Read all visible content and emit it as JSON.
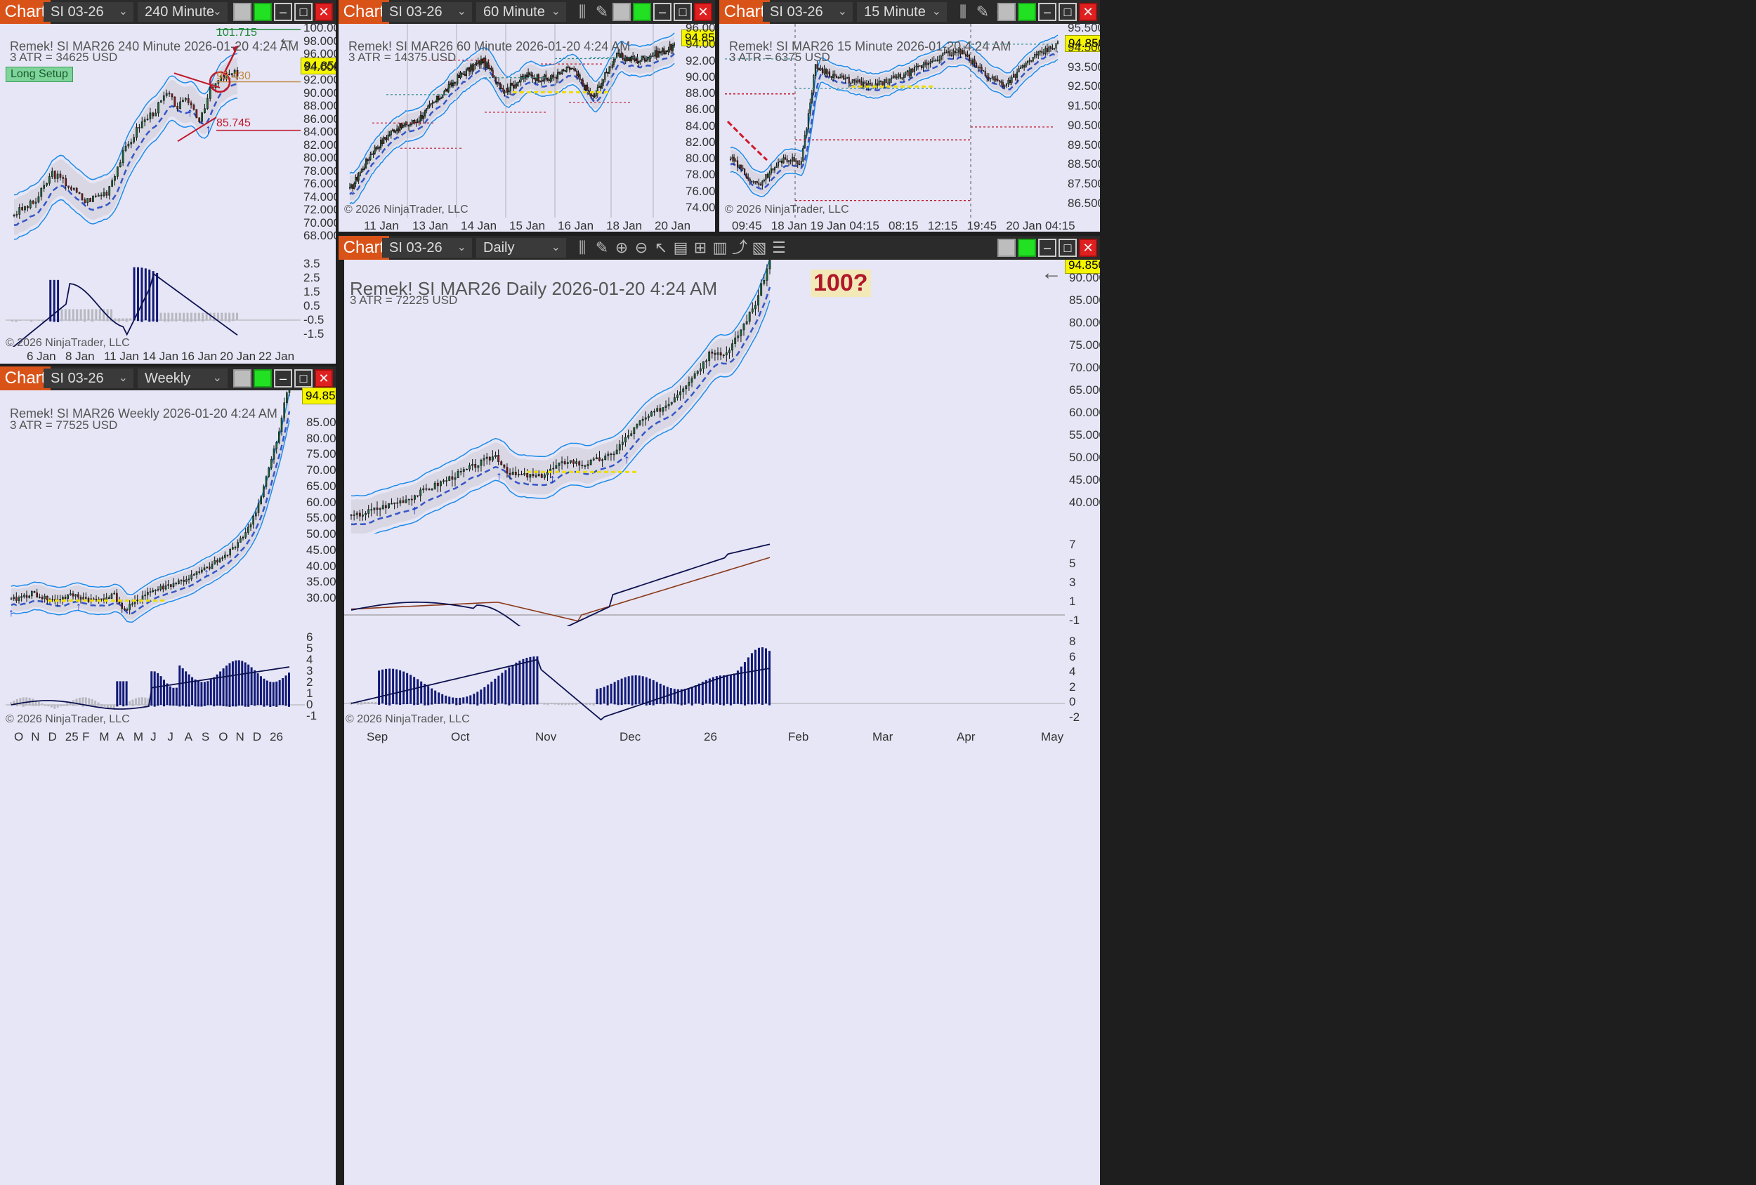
{
  "common": {
    "chart_label": "Chart",
    "symbol": "SI 03-26",
    "last_price": "94.850",
    "copyright": "© 2026 NinjaTrader, LLC",
    "back_arrow": "←"
  },
  "panel240": {
    "interval": "240 Minute",
    "title": "Remek!  SI MAR26  240 Minute  2026-01-20 4:24 AM",
    "atr": "3 ATR = 34625 USD",
    "setup_label": "Long Setup",
    "target_label": "101.715",
    "entry_label": "93.430",
    "stop_label": "85.745",
    "y_labels": [
      "100.000",
      "98.000",
      "96.000",
      "94.000",
      "92.000",
      "90.000",
      "88.000",
      "86.000",
      "84.000",
      "82.000",
      "80.000",
      "78.000",
      "76.000",
      "74.000",
      "72.000",
      "70.000",
      "68.000"
    ],
    "osc_labels": [
      "3.5",
      "2.5",
      "1.5",
      "0.5",
      "-0.5",
      "-1.5"
    ],
    "x_labels": [
      "6 Jan",
      "8 Jan",
      "11 Jan",
      "14 Jan",
      "16 Jan",
      "20 Jan",
      "22 Jan"
    ]
  },
  "panel60": {
    "interval": "60 Minute",
    "title": "Remek!  SI MAR26  60 Minute  2026-01-20 4:24 AM",
    "atr": "3 ATR = 14375 USD",
    "y_labels": [
      "96.000",
      "94.000",
      "92.000",
      "90.000",
      "88.000",
      "86.000",
      "84.000",
      "82.000",
      "80.000",
      "78.000",
      "76.000",
      "74.000"
    ],
    "x_labels": [
      "11 Jan",
      "13 Jan",
      "14 Jan",
      "15 Jan",
      "16 Jan",
      "18 Jan",
      "20 Jan"
    ]
  },
  "panel15": {
    "interval": "15 Minute",
    "title": "Remek!  SI MAR26  15 Minute  2026-01-20 4:24 AM",
    "atr": "3 ATR = 6375 USD",
    "y_labels": [
      "95.500",
      "94.500",
      "93.500",
      "92.500",
      "91.500",
      "90.500",
      "89.500",
      "88.500",
      "87.500",
      "86.500"
    ],
    "x_labels": [
      "09:45",
      "18 Jan",
      "19 Jan",
      "04:15",
      "08:15",
      "12:15",
      "19:45",
      "20 Jan",
      "04:15"
    ]
  },
  "panelWeekly": {
    "interval": "Weekly",
    "title": "Remek!  SI MAR26  Weekly  2026-01-20 4:24 AM",
    "atr": "3 ATR = 77525 USD",
    "y_labels": [
      "85.000",
      "80.000",
      "75.000",
      "70.000",
      "65.000",
      "60.000",
      "55.000",
      "50.000",
      "45.000",
      "40.000",
      "35.000",
      "30.000"
    ],
    "osc_labels": [
      "6",
      "5",
      "4",
      "3",
      "2",
      "1",
      "0",
      "-1"
    ],
    "x_labels": [
      "O",
      "N",
      "D",
      "25",
      "F",
      "M",
      "A",
      "M",
      "J",
      "J",
      "A",
      "S",
      "O",
      "N",
      "D",
      "26"
    ]
  },
  "panelDaily": {
    "interval": "Daily",
    "title": "Remek!  SI MAR26  Daily  2026-01-20 4:24 AM",
    "atr": "3 ATR = 72225 USD",
    "note": "100?",
    "y_labels": [
      "90.000",
      "85.000",
      "80.000",
      "75.000",
      "70.000",
      "65.000",
      "60.000",
      "55.000",
      "50.000",
      "45.000",
      "40.000"
    ],
    "osc1_labels": [
      "7",
      "5",
      "3",
      "1",
      "-1"
    ],
    "osc2_labels": [
      "8",
      "6",
      "4",
      "2",
      "0",
      "-2"
    ],
    "x_labels": [
      "Sep",
      "Oct",
      "Nov",
      "Dec",
      "26",
      "Feb",
      "Mar",
      "Apr",
      "May"
    ]
  },
  "chart_data": [
    {
      "type": "candlestick",
      "name": "240 Minute",
      "ylim": [
        67,
        101.5
      ],
      "last": 94.85,
      "anchors": [
        [
          0,
          72.5
        ],
        [
          8,
          74.5
        ],
        [
          14,
          79
        ],
        [
          20,
          77
        ],
        [
          26,
          74.5
        ],
        [
          34,
          76
        ],
        [
          40,
          82
        ],
        [
          46,
          86.5
        ],
        [
          52,
          89
        ],
        [
          56,
          91.5
        ],
        [
          60,
          89.5
        ],
        [
          64,
          90.5
        ],
        [
          68,
          87.5
        ],
        [
          72,
          92
        ],
        [
          76,
          94
        ],
        [
          82,
          94.85
        ]
      ],
      "levels": {
        "target": 101.715,
        "entry": 93.43,
        "stop": 85.745
      }
    },
    {
      "type": "candlestick",
      "name": "60 Minute",
      "ylim": [
        73,
        97
      ],
      "anchors": [
        [
          0,
          76
        ],
        [
          15,
          81
        ],
        [
          30,
          84
        ],
        [
          45,
          85
        ],
        [
          60,
          88
        ],
        [
          75,
          91
        ],
        [
          90,
          93
        ],
        [
          105,
          89
        ],
        [
          120,
          91
        ],
        [
          135,
          90.5
        ],
        [
          150,
          92
        ],
        [
          165,
          88
        ],
        [
          180,
          93.5
        ],
        [
          195,
          93
        ],
        [
          210,
          94
        ],
        [
          220,
          94.85
        ]
      ]
    },
    {
      "type": "candlestick",
      "name": "15 Minute",
      "ylim": [
        86,
        96
      ],
      "anchors": [
        [
          0,
          89
        ],
        [
          15,
          87.5
        ],
        [
          30,
          89
        ],
        [
          40,
          88.8
        ],
        [
          48,
          94
        ],
        [
          60,
          93.4
        ],
        [
          80,
          92.9
        ],
        [
          100,
          93.6
        ],
        [
          120,
          94.6
        ],
        [
          130,
          94.8
        ],
        [
          145,
          93.5
        ],
        [
          155,
          93
        ],
        [
          170,
          94.4
        ],
        [
          185,
          95.2
        ]
      ]
    },
    {
      "type": "candlestick",
      "name": "Weekly",
      "ylim": [
        27,
        90
      ],
      "anchors": [
        [
          0,
          33
        ],
        [
          8,
          35
        ],
        [
          16,
          33
        ],
        [
          24,
          34.5
        ],
        [
          32,
          33
        ],
        [
          40,
          34.5
        ],
        [
          44,
          30
        ],
        [
          52,
          35
        ],
        [
          60,
          37
        ],
        [
          68,
          39
        ],
        [
          76,
          42
        ],
        [
          84,
          46
        ],
        [
          92,
          53
        ],
        [
          96,
          60
        ],
        [
          100,
          70
        ],
        [
          104,
          80
        ],
        [
          106,
          88
        ],
        [
          108,
          94.85
        ]
      ]
    },
    {
      "type": "candlestick",
      "name": "Daily",
      "ylim": [
        37,
        92
      ],
      "anchors": [
        [
          0,
          39
        ],
        [
          10,
          41
        ],
        [
          20,
          43
        ],
        [
          30,
          46
        ],
        [
          40,
          49
        ],
        [
          50,
          52
        ],
        [
          55,
          48
        ],
        [
          65,
          47.5
        ],
        [
          75,
          51
        ],
        [
          80,
          50
        ],
        [
          90,
          52
        ],
        [
          100,
          59
        ],
        [
          110,
          63
        ],
        [
          120,
          70
        ],
        [
          125,
          74
        ],
        [
          130,
          73
        ],
        [
          140,
          84
        ],
        [
          145,
          93
        ]
      ]
    }
  ]
}
